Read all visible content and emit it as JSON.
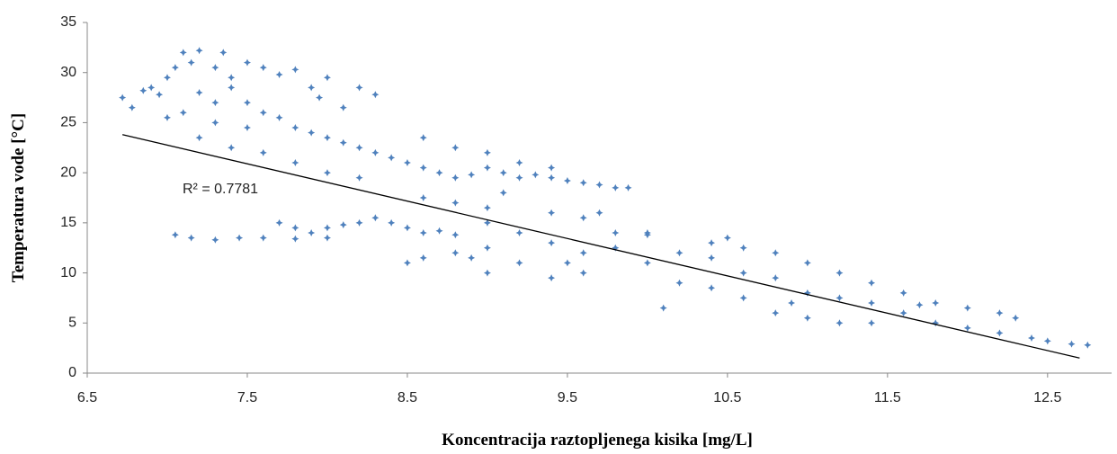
{
  "chart_data": {
    "type": "scatter",
    "x_label": "Koncentracija  raztopljenega  kisika [mg/L]",
    "y_label": "Temperatura  vode [°C]",
    "xlim": [
      6.5,
      12.9
    ],
    "ylim": [
      0,
      35
    ],
    "xticks": [
      6.5,
      7.5,
      8.5,
      9.5,
      10.5,
      11.5,
      12.5
    ],
    "yticks": [
      0,
      5,
      10,
      15,
      20,
      25,
      30,
      35
    ],
    "grid": false,
    "series": [
      {
        "color": "#4f81bd",
        "x": [
          6.72,
          6.78,
          6.85,
          6.9,
          6.95,
          7.0,
          7.05,
          7.1,
          7.15,
          7.2,
          7.3,
          7.35,
          7.4,
          7.5,
          7.6,
          7.7,
          7.8,
          7.9,
          8.0,
          8.2,
          8.3,
          8.1,
          7.95,
          7.0,
          7.1,
          7.2,
          7.3,
          7.4,
          7.5,
          7.6,
          7.7,
          7.8,
          7.9,
          8.0,
          8.1,
          8.2,
          8.3,
          8.4,
          8.5,
          8.6,
          8.7,
          8.8,
          8.9,
          9.0,
          9.1,
          9.2,
          9.3,
          9.4,
          9.5,
          9.6,
          9.7,
          9.8,
          9.88,
          9.0,
          8.8,
          8.6,
          9.2,
          9.4,
          7.2,
          7.4,
          7.6,
          7.8,
          8.0,
          8.2,
          7.3,
          7.5,
          8.6,
          8.8,
          9.0,
          7.05,
          7.15,
          7.3,
          7.45,
          7.6,
          7.7,
          7.8,
          7.9,
          8.0,
          8.1,
          8.2,
          8.3,
          8.4,
          8.5,
          8.6,
          8.7,
          8.8,
          7.8,
          8.0,
          8.5,
          8.6,
          8.8,
          9.0,
          9.0,
          9.2,
          9.2,
          9.4,
          9.4,
          9.6,
          9.6,
          9.6,
          9.8,
          9.8,
          10.0,
          10.0,
          10.0,
          10.2,
          10.2,
          10.4,
          10.4,
          10.4,
          10.6,
          10.6,
          10.6,
          10.8,
          10.8,
          10.8,
          11.0,
          11.0,
          11.0,
          11.2,
          11.2,
          11.2,
          11.4,
          11.4,
          11.4,
          11.6,
          11.6,
          11.8,
          11.8,
          12.0,
          12.0,
          12.2,
          12.2,
          12.3,
          12.4,
          12.5,
          12.65,
          12.75,
          9.5,
          10.1,
          9.0,
          9.4,
          10.5,
          10.9,
          11.7,
          8.9,
          9.7,
          9.1
        ],
        "y": [
          27.5,
          26.5,
          28.2,
          28.5,
          27.8,
          29.5,
          30.5,
          32,
          31,
          32.2,
          30.5,
          32,
          29.5,
          31,
          30.5,
          29.8,
          30.3,
          28.5,
          29.5,
          28.5,
          27.8,
          26.5,
          27.5,
          25.5,
          26,
          28,
          27,
          28.5,
          27,
          26,
          25.5,
          24.5,
          24,
          23.5,
          23,
          22.5,
          22,
          21.5,
          21,
          20.5,
          20,
          19.5,
          19.8,
          20.5,
          20,
          19.5,
          19.8,
          19.5,
          19.2,
          19,
          18.8,
          18.5,
          18.5,
          22,
          22.5,
          23.5,
          21,
          20.5,
          23.5,
          22.5,
          22,
          21,
          20,
          19.5,
          25,
          24.5,
          17.5,
          17,
          16.5,
          13.8,
          13.5,
          13.3,
          13.5,
          13.5,
          15,
          14.5,
          14,
          14.5,
          14.8,
          15,
          15.5,
          15,
          14.5,
          14,
          14.2,
          13.8,
          13.4,
          13.5,
          11,
          11.5,
          12,
          12.5,
          15,
          14,
          11,
          13,
          16,
          15.5,
          12,
          10,
          14,
          12.5,
          14,
          11,
          13.8,
          12,
          9,
          13,
          11.5,
          8.5,
          12.5,
          10,
          7.5,
          12,
          9.5,
          6,
          11,
          8,
          5.5,
          10,
          7.5,
          5,
          9,
          7,
          5,
          8,
          6,
          7,
          5,
          6.5,
          4.5,
          6,
          4,
          5.5,
          3.5,
          3.2,
          2.9,
          2.8,
          11,
          6.5,
          10,
          9.5,
          13.5,
          7,
          6.8,
          11.5,
          16,
          18
        ]
      }
    ],
    "trendline": {
      "color": "#000000",
      "x": [
        6.72,
        12.7
      ],
      "y": [
        23.8,
        1.5
      ]
    },
    "annotation": "R² = 0.7781"
  }
}
